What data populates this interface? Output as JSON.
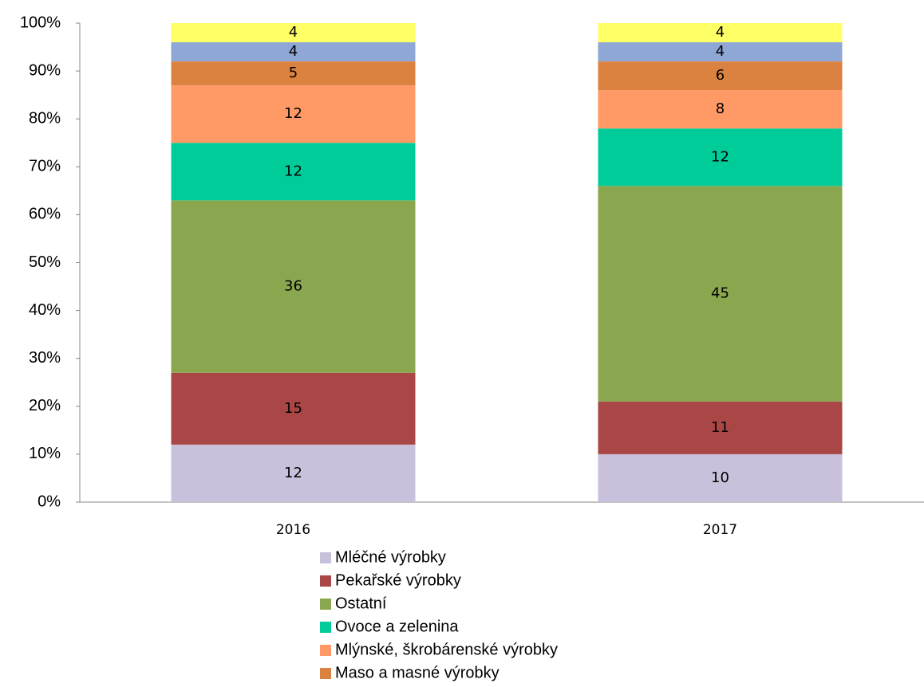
{
  "chart_data": {
    "type": "stacked_bar",
    "categories": [
      "2016",
      "2017"
    ],
    "series": [
      {
        "name": "Mléčné výrobky",
        "color": "#c9c0db",
        "values": [
          12,
          10
        ]
      },
      {
        "name": "Pekařské výrobky",
        "color": "#a84745",
        "values": [
          15,
          11
        ]
      },
      {
        "name": "Ostatní",
        "color": "#8aa74f",
        "values": [
          36,
          45
        ]
      },
      {
        "name": "Ovoce a zelenina",
        "color": "#00cc99",
        "values": [
          12,
          12
        ]
      },
      {
        "name": "Mlýnské, škrobárenské výrobky",
        "color": "#ff9966",
        "values": [
          12,
          8
        ]
      },
      {
        "name": "Maso a masné výrobky",
        "color": "#dc8240",
        "values": [
          5,
          6
        ]
      },
      {
        "color": "#8fa7d4",
        "values": [
          4,
          4
        ]
      },
      {
        "color": "#ffff66",
        "values": [
          4,
          4
        ]
      }
    ],
    "ylim": [
      0,
      100
    ],
    "yticks": [
      {
        "value": 0,
        "label": "0%"
      },
      {
        "value": 10,
        "label": "10%"
      },
      {
        "value": 20,
        "label": "20%"
      },
      {
        "value": 30,
        "label": "30%"
      },
      {
        "value": 40,
        "label": "40%"
      },
      {
        "value": 50,
        "label": "50%"
      },
      {
        "value": 60,
        "label": "60%"
      },
      {
        "value": 70,
        "label": "70%"
      },
      {
        "value": 80,
        "label": "80%"
      },
      {
        "value": 90,
        "label": "90%"
      },
      {
        "value": 100,
        "label": "100%"
      }
    ],
    "legend": "bottom"
  }
}
